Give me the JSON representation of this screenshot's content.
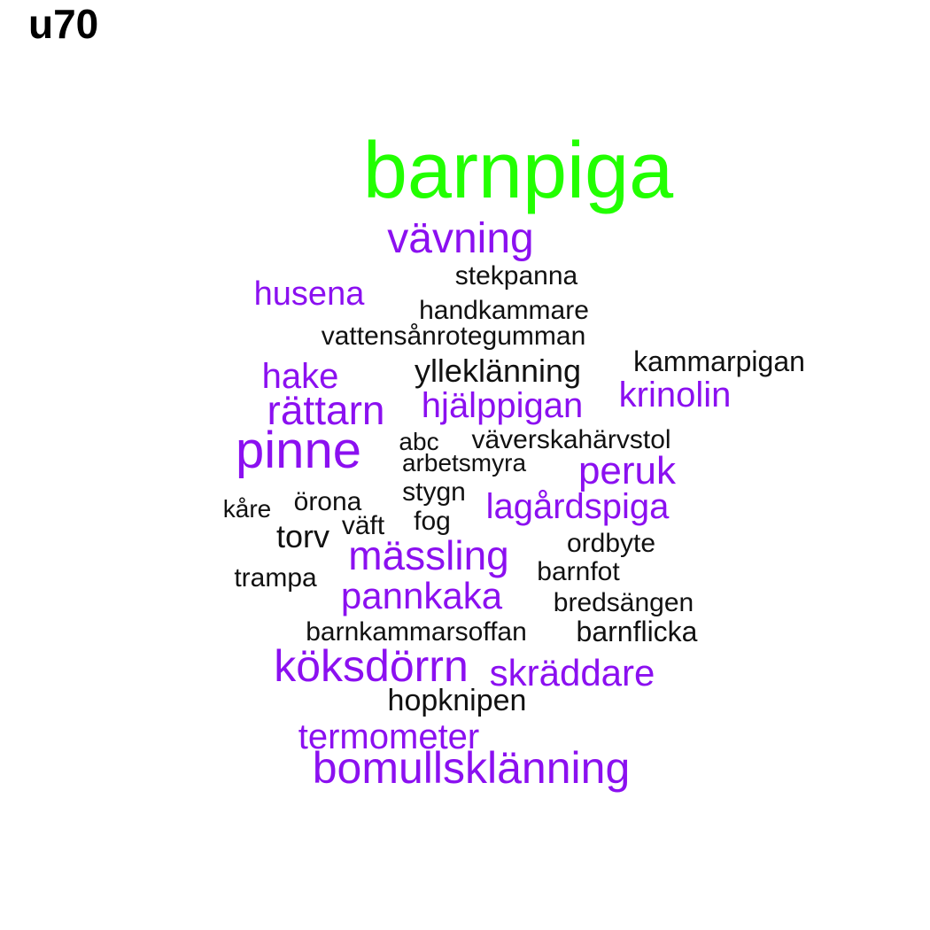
{
  "title": "u70",
  "colors": {
    "highlight": "#22ff00",
    "purple": "#8b10f0",
    "black": "#111111"
  },
  "words": [
    "barnpiga",
    "vävning",
    "stekpanna",
    "husena",
    "handkammare",
    "vattensånrotegumman",
    "kammarpigan",
    "ylleklänning",
    "hake",
    "krinolin",
    "rättarn",
    "hjälppigan",
    "pinne",
    "abc",
    "väverskahärvstol",
    "arbetsmyra",
    "peruk",
    "stygn",
    "kåre",
    "örona",
    "lagårdspiga",
    "väft",
    "fog",
    "torv",
    "ordbyte",
    "mässling",
    "trampa",
    "barnfot",
    "pannkaka",
    "bredsängen",
    "barnkammarsoffan",
    "barnflicka",
    "köksdörrn",
    "skräddare",
    "hopknipen",
    "termometer",
    "bomullsklänning"
  ]
}
